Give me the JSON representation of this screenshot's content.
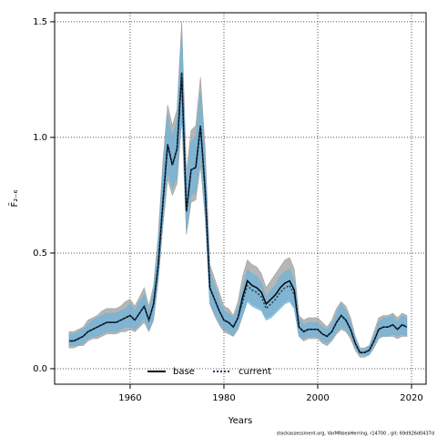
{
  "chart_data": {
    "type": "line",
    "ylabel": "F̄₂₋₆",
    "xlabel": "Years",
    "footnote": "stockassessment.org, VarMNseaHerring, r14700 , git: 69d926d0437d",
    "xlim": [
      1943.9,
      2023.1
    ],
    "ylim": [
      -0.067,
      1.539
    ],
    "xticks": [
      1960,
      1980,
      2000,
      2020
    ],
    "yticks": [
      {
        "value": 0,
        "label": "0.0"
      },
      0.5,
      {
        "value": 1,
        "label": "1.0"
      },
      1.5
    ],
    "grid": true,
    "legend": "bottom",
    "x": [
      1947,
      1948,
      1949,
      1950,
      1951,
      1952,
      1953,
      1954,
      1955,
      1956,
      1957,
      1958,
      1959,
      1960,
      1961,
      1962,
      1963,
      1964,
      1965,
      1966,
      1967,
      1968,
      1969,
      1970,
      1971,
      1972,
      1973,
      1974,
      1975,
      1976,
      1977,
      1978,
      1979,
      1980,
      1981,
      1982,
      1983,
      1984,
      1985,
      1986,
      1987,
      1988,
      1989,
      1990,
      1991,
      1992,
      1993,
      1994,
      1995,
      1996,
      1997,
      1998,
      1999,
      2000,
      2001,
      2002,
      2003,
      2004,
      2005,
      2006,
      2007,
      2008,
      2009,
      2010,
      2011,
      2012,
      2013,
      2014,
      2015,
      2016,
      2017,
      2018,
      2019
    ],
    "series": [
      {
        "name": "base",
        "color": "#000000",
        "band_color": "#9e9e9e",
        "dash": false,
        "values": [
          0.12,
          0.12,
          0.13,
          0.14,
          0.16,
          0.17,
          0.18,
          0.19,
          0.2,
          0.2,
          0.2,
          0.21,
          0.22,
          0.23,
          0.21,
          0.24,
          0.27,
          0.21,
          0.28,
          0.45,
          0.72,
          0.97,
          0.88,
          0.95,
          1.28,
          0.68,
          0.86,
          0.87,
          1.05,
          0.77,
          0.35,
          0.3,
          0.25,
          0.21,
          0.2,
          0.18,
          0.22,
          0.31,
          0.38,
          0.36,
          0.35,
          0.33,
          0.28,
          0.3,
          0.32,
          0.35,
          0.37,
          0.38,
          0.34,
          0.18,
          0.16,
          0.17,
          0.17,
          0.17,
          0.15,
          0.14,
          0.16,
          0.2,
          0.23,
          0.21,
          0.17,
          0.11,
          0.07,
          0.07,
          0.08,
          0.12,
          0.17,
          0.18,
          0.18,
          0.19,
          0.17,
          0.19,
          0.18
        ],
        "upper": [
          0.16,
          0.16,
          0.17,
          0.18,
          0.21,
          0.22,
          0.23,
          0.25,
          0.26,
          0.26,
          0.26,
          0.27,
          0.29,
          0.3,
          0.27,
          0.31,
          0.35,
          0.27,
          0.36,
          0.58,
          0.9,
          1.14,
          1.05,
          1.12,
          1.5,
          0.85,
          1.03,
          1.05,
          1.26,
          0.95,
          0.45,
          0.39,
          0.33,
          0.27,
          0.26,
          0.23,
          0.29,
          0.4,
          0.47,
          0.45,
          0.44,
          0.41,
          0.35,
          0.38,
          0.41,
          0.44,
          0.47,
          0.48,
          0.43,
          0.23,
          0.21,
          0.22,
          0.22,
          0.22,
          0.2,
          0.18,
          0.21,
          0.26,
          0.29,
          0.27,
          0.22,
          0.14,
          0.09,
          0.09,
          0.1,
          0.16,
          0.22,
          0.23,
          0.23,
          0.24,
          0.22,
          0.24,
          0.23
        ],
        "lower": [
          0.09,
          0.09,
          0.1,
          0.1,
          0.12,
          0.13,
          0.13,
          0.14,
          0.15,
          0.15,
          0.15,
          0.16,
          0.16,
          0.17,
          0.16,
          0.18,
          0.2,
          0.16,
          0.21,
          0.38,
          0.62,
          0.82,
          0.75,
          0.8,
          1.08,
          0.58,
          0.72,
          0.73,
          0.88,
          0.65,
          0.28,
          0.23,
          0.19,
          0.16,
          0.15,
          0.14,
          0.17,
          0.23,
          0.3,
          0.28,
          0.27,
          0.26,
          0.22,
          0.23,
          0.25,
          0.27,
          0.29,
          0.3,
          0.26,
          0.14,
          0.12,
          0.13,
          0.13,
          0.13,
          0.11,
          0.1,
          0.12,
          0.15,
          0.17,
          0.16,
          0.13,
          0.08,
          0.05,
          0.05,
          0.06,
          0.09,
          0.13,
          0.14,
          0.14,
          0.14,
          0.13,
          0.14,
          0.14
        ]
      },
      {
        "name": "current",
        "color": "#1a3a66",
        "band_color": "#6fb3d8",
        "dash": true,
        "values": [
          0.12,
          0.12,
          0.13,
          0.14,
          0.16,
          0.17,
          0.18,
          0.19,
          0.2,
          0.2,
          0.2,
          0.21,
          0.22,
          0.23,
          0.21,
          0.24,
          0.27,
          0.21,
          0.28,
          0.45,
          0.72,
          0.97,
          0.88,
          0.95,
          1.28,
          0.68,
          0.86,
          0.87,
          1.05,
          0.77,
          0.35,
          0.3,
          0.25,
          0.21,
          0.2,
          0.18,
          0.22,
          0.29,
          0.36,
          0.34,
          0.33,
          0.31,
          0.26,
          0.28,
          0.3,
          0.33,
          0.35,
          0.36,
          0.32,
          0.18,
          0.16,
          0.17,
          0.17,
          0.17,
          0.15,
          0.14,
          0.16,
          0.2,
          0.23,
          0.21,
          0.17,
          0.11,
          0.07,
          0.07,
          0.08,
          0.12,
          0.17,
          0.18,
          0.18,
          0.19,
          0.17,
          0.19,
          0.18
        ],
        "upper": [
          0.15,
          0.15,
          0.16,
          0.17,
          0.19,
          0.21,
          0.22,
          0.23,
          0.24,
          0.24,
          0.24,
          0.25,
          0.26,
          0.28,
          0.25,
          0.29,
          0.32,
          0.25,
          0.34,
          0.54,
          0.86,
          1.1,
          1.0,
          1.08,
          1.45,
          0.8,
          0.98,
          1.0,
          1.2,
          0.9,
          0.42,
          0.36,
          0.3,
          0.25,
          0.24,
          0.22,
          0.26,
          0.35,
          0.43,
          0.41,
          0.4,
          0.37,
          0.31,
          0.34,
          0.36,
          0.4,
          0.42,
          0.43,
          0.38,
          0.22,
          0.19,
          0.2,
          0.2,
          0.2,
          0.18,
          0.17,
          0.19,
          0.24,
          0.28,
          0.25,
          0.2,
          0.13,
          0.08,
          0.08,
          0.1,
          0.14,
          0.2,
          0.22,
          0.22,
          0.23,
          0.2,
          0.23,
          0.22
        ],
        "lower": [
          0.1,
          0.1,
          0.1,
          0.11,
          0.13,
          0.14,
          0.14,
          0.15,
          0.16,
          0.16,
          0.16,
          0.17,
          0.18,
          0.18,
          0.17,
          0.19,
          0.22,
          0.17,
          0.22,
          0.4,
          0.64,
          0.85,
          0.78,
          0.83,
          1.12,
          0.6,
          0.75,
          0.76,
          0.92,
          0.68,
          0.28,
          0.24,
          0.2,
          0.17,
          0.16,
          0.14,
          0.18,
          0.23,
          0.29,
          0.27,
          0.26,
          0.25,
          0.21,
          0.22,
          0.24,
          0.26,
          0.28,
          0.29,
          0.26,
          0.14,
          0.13,
          0.14,
          0.14,
          0.14,
          0.12,
          0.11,
          0.13,
          0.16,
          0.18,
          0.17,
          0.14,
          0.09,
          0.06,
          0.06,
          0.06,
          0.1,
          0.14,
          0.14,
          0.14,
          0.15,
          0.14,
          0.15,
          0.14
        ]
      }
    ]
  }
}
